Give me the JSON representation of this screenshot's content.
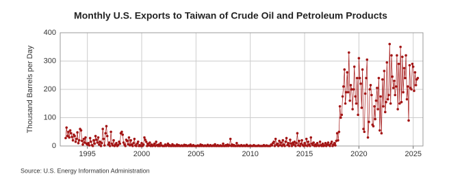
{
  "chart_data": {
    "type": "line",
    "title": "Monthly U.S. Exports to Taiwan of Crude Oil and Petroleum Products",
    "y_label": "Thousand Barrels per Day",
    "source": "Source: U.S. Energy Information Administration",
    "color": "#a31515",
    "grid": true,
    "xlim": [
      1992.5,
      2025.9
    ],
    "xticks": [
      1995,
      2000,
      2005,
      2010,
      2015,
      2020,
      2025
    ],
    "ylim": [
      0,
      400
    ],
    "yticks": [
      0,
      100,
      200,
      300,
      400
    ],
    "x": [
      1993,
      1993.08,
      1993.17,
      1993.25,
      1993.33,
      1993.42,
      1993.5,
      1993.58,
      1993.67,
      1993.75,
      1993.83,
      1993.92,
      1994,
      1994.08,
      1994.17,
      1994.25,
      1994.33,
      1994.42,
      1994.5,
      1994.58,
      1994.67,
      1994.75,
      1994.83,
      1994.92,
      1995,
      1995.08,
      1995.17,
      1995.25,
      1995.33,
      1995.42,
      1995.5,
      1995.58,
      1995.67,
      1995.75,
      1995.83,
      1995.92,
      1996,
      1996.08,
      1996.17,
      1996.25,
      1996.33,
      1996.42,
      1996.5,
      1996.58,
      1996.67,
      1996.75,
      1996.83,
      1996.92,
      1997,
      1997.08,
      1997.17,
      1997.25,
      1997.33,
      1997.42,
      1997.5,
      1997.58,
      1997.67,
      1997.75,
      1997.83,
      1997.92,
      1998,
      1998.08,
      1998.17,
      1998.25,
      1998.33,
      1998.42,
      1998.5,
      1998.58,
      1998.67,
      1998.75,
      1998.83,
      1998.92,
      1999,
      1999.08,
      1999.17,
      1999.25,
      1999.33,
      1999.42,
      1999.5,
      1999.58,
      1999.67,
      1999.75,
      1999.83,
      1999.92,
      2000,
      2000.08,
      2000.17,
      2000.25,
      2000.33,
      2000.42,
      2000.5,
      2000.58,
      2000.67,
      2000.75,
      2000.83,
      2000.92,
      2001,
      2001.08,
      2001.17,
      2001.25,
      2001.33,
      2001.42,
      2001.5,
      2001.58,
      2001.67,
      2001.75,
      2001.83,
      2001.92,
      2002,
      2002.08,
      2002.17,
      2002.25,
      2002.33,
      2002.42,
      2002.5,
      2002.58,
      2002.67,
      2002.75,
      2002.83,
      2002.92,
      2003,
      2003.08,
      2003.17,
      2003.25,
      2003.33,
      2003.42,
      2003.5,
      2003.58,
      2003.67,
      2003.75,
      2003.83,
      2003.92,
      2004,
      2004.08,
      2004.17,
      2004.25,
      2004.33,
      2004.42,
      2004.5,
      2004.58,
      2004.67,
      2004.75,
      2004.83,
      2004.92,
      2005,
      2005.08,
      2005.17,
      2005.25,
      2005.33,
      2005.42,
      2005.5,
      2005.58,
      2005.67,
      2005.75,
      2005.83,
      2005.92,
      2006,
      2006.08,
      2006.17,
      2006.25,
      2006.33,
      2006.42,
      2006.5,
      2006.58,
      2006.67,
      2006.75,
      2006.83,
      2006.92,
      2007,
      2007.08,
      2007.17,
      2007.25,
      2007.33,
      2007.42,
      2007.5,
      2007.58,
      2007.67,
      2007.75,
      2007.83,
      2007.92,
      2008,
      2008.08,
      2008.17,
      2008.25,
      2008.33,
      2008.42,
      2008.5,
      2008.58,
      2008.67,
      2008.75,
      2008.83,
      2008.92,
      2009,
      2009.08,
      2009.17,
      2009.25,
      2009.33,
      2009.42,
      2009.5,
      2009.58,
      2009.67,
      2009.75,
      2009.83,
      2009.92,
      2010,
      2010.08,
      2010.17,
      2010.25,
      2010.33,
      2010.42,
      2010.5,
      2010.58,
      2010.67,
      2010.75,
      2010.83,
      2010.92,
      2011,
      2011.08,
      2011.17,
      2011.25,
      2011.33,
      2011.42,
      2011.5,
      2011.58,
      2011.67,
      2011.75,
      2011.83,
      2011.92,
      2012,
      2012.08,
      2012.17,
      2012.25,
      2012.33,
      2012.42,
      2012.5,
      2012.58,
      2012.67,
      2012.75,
      2012.83,
      2012.92,
      2013,
      2013.08,
      2013.17,
      2013.25,
      2013.33,
      2013.42,
      2013.5,
      2013.58,
      2013.67,
      2013.75,
      2013.83,
      2013.92,
      2014,
      2014.08,
      2014.17,
      2014.25,
      2014.33,
      2014.42,
      2014.5,
      2014.58,
      2014.67,
      2014.75,
      2014.83,
      2014.92,
      2015,
      2015.08,
      2015.17,
      2015.25,
      2015.33,
      2015.42,
      2015.5,
      2015.58,
      2015.67,
      2015.75,
      2015.83,
      2015.92,
      2016,
      2016.08,
      2016.17,
      2016.25,
      2016.33,
      2016.42,
      2016.5,
      2016.58,
      2016.67,
      2016.75,
      2016.83,
      2016.92,
      2017,
      2017.08,
      2017.17,
      2017.25,
      2017.33,
      2017.42,
      2017.5,
      2017.58,
      2017.67,
      2017.75,
      2017.83,
      2017.92,
      2018,
      2018.08,
      2018.17,
      2018.25,
      2018.33,
      2018.42,
      2018.5,
      2018.58,
      2018.67,
      2018.75,
      2018.83,
      2018.92,
      2019,
      2019.08,
      2019.17,
      2019.25,
      2019.33,
      2019.42,
      2019.5,
      2019.58,
      2019.67,
      2019.75,
      2019.83,
      2019.92,
      2020,
      2020.08,
      2020.17,
      2020.25,
      2020.33,
      2020.42,
      2020.5,
      2020.58,
      2020.67,
      2020.75,
      2020.83,
      2020.92,
      2021,
      2021.08,
      2021.17,
      2021.25,
      2021.33,
      2021.42,
      2021.5,
      2021.58,
      2021.67,
      2021.75,
      2021.83,
      2021.92,
      2022,
      2022.08,
      2022.17,
      2022.25,
      2022.33,
      2022.42,
      2022.5,
      2022.58,
      2022.67,
      2022.75,
      2022.83,
      2022.92,
      2023,
      2023.08,
      2023.17,
      2023.25,
      2023.33,
      2023.42,
      2023.5,
      2023.58,
      2023.67,
      2023.75,
      2023.83,
      2023.92,
      2024,
      2024.08,
      2024.17,
      2024.25,
      2024.33,
      2024.42,
      2024.5,
      2024.58,
      2024.67,
      2024.75,
      2024.83,
      2024.92,
      2025,
      2025.08,
      2025.17,
      2025.25,
      2025.33,
      2025.42
    ],
    "values": [
      28,
      65,
      35,
      50,
      30,
      55,
      45,
      32,
      20,
      40,
      35,
      15,
      25,
      48,
      10,
      20,
      60,
      55,
      18,
      5,
      25,
      12,
      30,
      8,
      5,
      10,
      2,
      28,
      15,
      3,
      0,
      20,
      8,
      35,
      22,
      12,
      30,
      5,
      15,
      0,
      10,
      60,
      25,
      2,
      45,
      70,
      35,
      5,
      12,
      0,
      50,
      8,
      2,
      20,
      0,
      5,
      10,
      0,
      3,
      15,
      8,
      45,
      50,
      40,
      12,
      5,
      0,
      22,
      18,
      6,
      30,
      2,
      20,
      5,
      0,
      10,
      25,
      2,
      0,
      8,
      15,
      0,
      3,
      0,
      10,
      0,
      5,
      30,
      22,
      15,
      0,
      8,
      2,
      12,
      0,
      5,
      0,
      2,
      8,
      0,
      15,
      3,
      0,
      5,
      0,
      10,
      2,
      0,
      0,
      0,
      5,
      0,
      2,
      8,
      0,
      3,
      0,
      0,
      6,
      0,
      2,
      0,
      0,
      5,
      0,
      3,
      0,
      0,
      2,
      0,
      0,
      4,
      0,
      3,
      0,
      0,
      2,
      0,
      5,
      0,
      0,
      3,
      0,
      0,
      0,
      0,
      2,
      0,
      0,
      5,
      0,
      3,
      0,
      0,
      2,
      0,
      0,
      4,
      0,
      0,
      3,
      0,
      0,
      2,
      0,
      6,
      0,
      0,
      3,
      0,
      0,
      2,
      0,
      0,
      8,
      0,
      0,
      3,
      0,
      5,
      0,
      2,
      25,
      0,
      5,
      0,
      3,
      0,
      0,
      10,
      0,
      2,
      0,
      0,
      3,
      0,
      0,
      2,
      0,
      0,
      4,
      0,
      0,
      0,
      2,
      0,
      0,
      0,
      3,
      0,
      0,
      0,
      0,
      2,
      0,
      0,
      0,
      0,
      0,
      3,
      0,
      0,
      2,
      0,
      0,
      0,
      0,
      5,
      2,
      10,
      15,
      0,
      25,
      5,
      8,
      0,
      18,
      3,
      12,
      0,
      20,
      5,
      0,
      15,
      28,
      3,
      10,
      0,
      22,
      8,
      0,
      12,
      5,
      15,
      0,
      10,
      45,
      2,
      18,
      0,
      8,
      20,
      3,
      0,
      10,
      2,
      25,
      0,
      15,
      5,
      0,
      30,
      8,
      3,
      12,
      0,
      5,
      0,
      10,
      2,
      0,
      15,
      3,
      0,
      8,
      0,
      2,
      10,
      0,
      5,
      12,
      3,
      0,
      8,
      15,
      0,
      5,
      10,
      2,
      18,
      45,
      20,
      50,
      140,
      100,
      110,
      175,
      210,
      270,
      150,
      190,
      260,
      190,
      330,
      160,
      215,
      200,
      130,
      200,
      280,
      175,
      150,
      240,
      110,
      310,
      240,
      220,
      135,
      270,
      60,
      50,
      185,
      240,
      305,
      30,
      85,
      200,
      215,
      180,
      75,
      70,
      140,
      95,
      160,
      205,
      130,
      240,
      55,
      175,
      45,
      235,
      140,
      265,
      120,
      155,
      295,
      165,
      180,
      360,
      150,
      320,
      245,
      205,
      230,
      180,
      210,
      320,
      130,
      290,
      150,
      350,
      155,
      315,
      190,
      275,
      240,
      320,
      165,
      210,
      90,
      285,
      205,
      200,
      290,
      280,
      195,
      260,
      215,
      235,
      240
    ]
  }
}
